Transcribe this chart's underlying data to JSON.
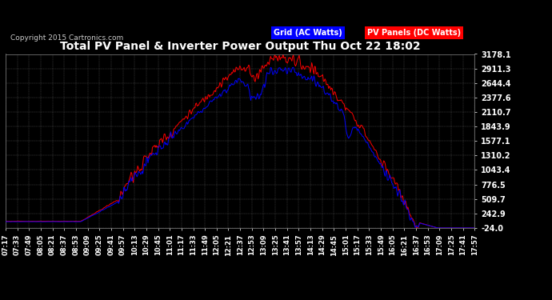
{
  "title": "Total PV Panel & Inverter Power Output Thu Oct 22 18:02",
  "copyright": "Copyright 2015 Cartronics.com",
  "legend_grid": "Grid (AC Watts)",
  "legend_pv": "PV Panels (DC Watts)",
  "grid_color": "#0000ff",
  "pv_color": "#ff0000",
  "background_color": "#000000",
  "plot_bg_color": "#000000",
  "text_color": "#ffffff",
  "ymin": -24.0,
  "ymax": 3178.1,
  "yticks": [
    3178.1,
    2911.3,
    2644.4,
    2377.6,
    2110.7,
    1843.9,
    1577.1,
    1310.2,
    1043.4,
    776.5,
    509.7,
    242.9,
    -24.0
  ],
  "xtick_labels": [
    "07:17",
    "07:33",
    "07:49",
    "08:05",
    "08:21",
    "08:37",
    "08:53",
    "09:09",
    "09:25",
    "09:41",
    "09:57",
    "10:13",
    "10:29",
    "10:45",
    "11:01",
    "11:17",
    "11:33",
    "11:49",
    "12:05",
    "12:21",
    "12:37",
    "12:53",
    "13:09",
    "13:25",
    "13:41",
    "13:57",
    "14:13",
    "14:29",
    "14:45",
    "15:01",
    "15:17",
    "15:33",
    "15:49",
    "16:05",
    "16:21",
    "16:37",
    "16:53",
    "17:09",
    "17:25",
    "17:41",
    "17:57"
  ],
  "figsize": [
    6.9,
    3.75
  ],
  "dpi": 100
}
